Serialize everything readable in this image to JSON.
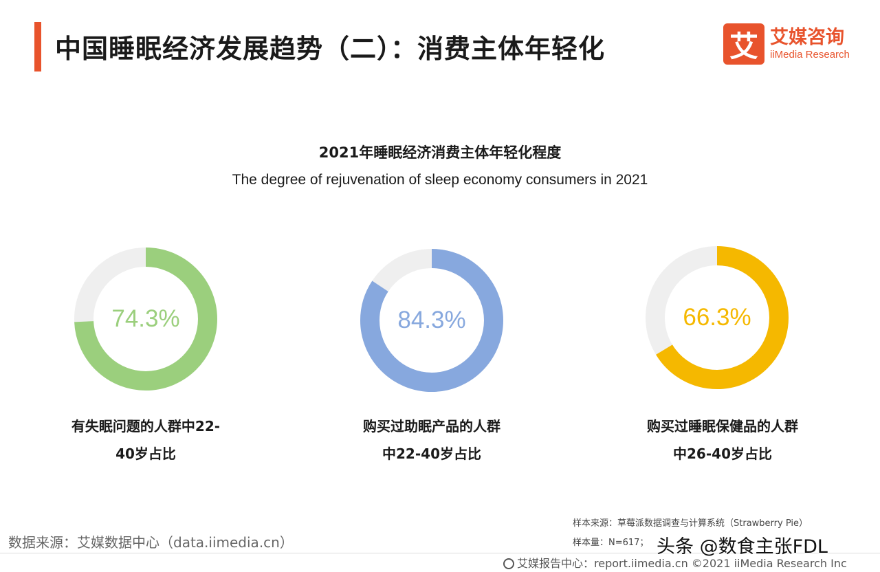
{
  "header": {
    "title": "中国睡眠经济发展趋势（二）：消费主体年轻化",
    "logo_mark": "艾",
    "logo_cn": "艾媒咨询",
    "logo_en": "iiMedia Research",
    "accent_color": "#e8532c"
  },
  "chart_data": {
    "type": "pie",
    "title": "2021年睡眠经济消费主体年轻化程度",
    "subtitle": "The degree of rejuvenation of sleep economy consumers in 2021",
    "series": [
      {
        "value": 74.3,
        "label": "74.3%",
        "caption_line1": "有失眠问题的人群中22-",
        "caption_line2": "40岁占比",
        "color": "#9bcf7d"
      },
      {
        "value": 84.3,
        "label": "84.3%",
        "caption_line1": "购买过助眠产品的人群",
        "caption_line2": "中22-40岁占比",
        "color": "#87a8de"
      },
      {
        "value": 66.3,
        "label": "66.3%",
        "caption_line1": "购买过睡眠保健品的人群",
        "caption_line2": "中26-40岁占比",
        "color": "#f5b800"
      }
    ],
    "remainder_color": "#efefef"
  },
  "sources": {
    "data_source": "数据来源：艾媒数据中心（data.iimedia.cn）",
    "sample_source": "样本来源：草莓派数据调查与计算系统（Strawberry Pie）",
    "sample_size": "样本量：N=617；",
    "footer": "艾媒报告中心：report.iimedia.cn  ©2021  iiMedia Research  Inc"
  },
  "watermark": "头条 @数食主张FDL"
}
